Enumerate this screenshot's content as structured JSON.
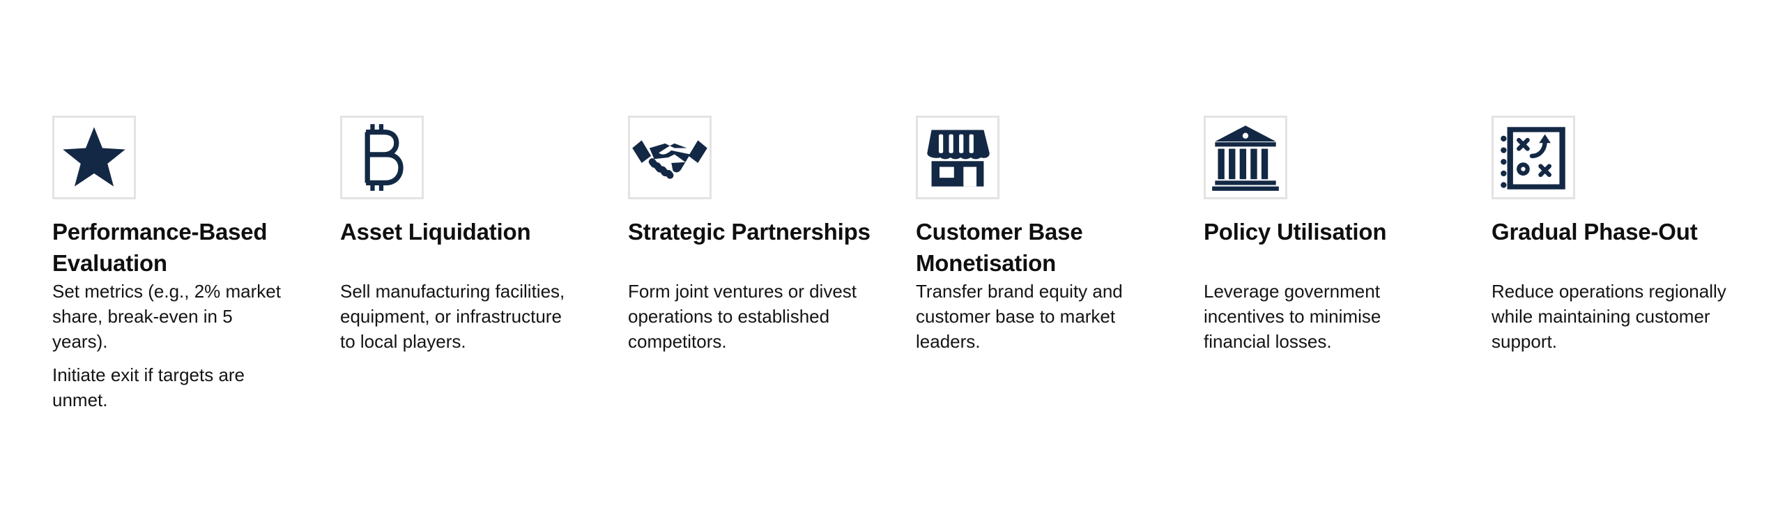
{
  "colors": {
    "icon": "#132844",
    "icon_border": "#e3e3e3",
    "text": "#141414"
  },
  "cards": [
    {
      "icon": "star-icon",
      "title": "Performance-Based Evaluation",
      "paragraphs": [
        "Set metrics (e.g., 2% market share, break-even in 5 years).",
        "Initiate exit if targets are unmet."
      ]
    },
    {
      "icon": "bitcoin-icon",
      "title": "Asset Liquidation",
      "paragraphs": [
        "Sell manufacturing facilities, equipment, or infrastructure to local players."
      ]
    },
    {
      "icon": "handshake-icon",
      "title": "Strategic Partnerships",
      "paragraphs": [
        "Form joint ventures or divest operations to established competitors."
      ]
    },
    {
      "icon": "storefront-icon",
      "title": "Customer Base Monetisation",
      "paragraphs": [
        "Transfer brand equity and customer base to market leaders."
      ]
    },
    {
      "icon": "government-building-icon",
      "title": "Policy Utilisation",
      "paragraphs": [
        "Leverage government incentives to minimise financial losses."
      ]
    },
    {
      "icon": "strategy-playbook-icon",
      "title": "Gradual Phase-Out",
      "paragraphs": [
        "Reduce operations regionally while maintaining customer support."
      ]
    }
  ]
}
